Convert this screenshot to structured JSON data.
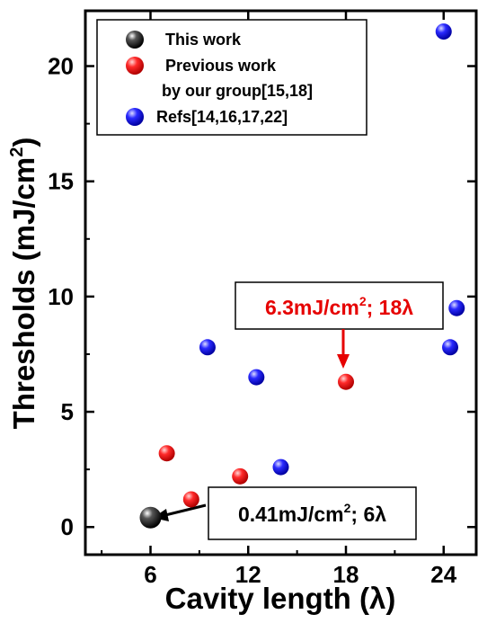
{
  "chart_data": {
    "type": "scatter",
    "xlabel": "Cavity length (λ)",
    "ylabel_main": "Thresholds (mJ/cm",
    "ylabel_sup": "2",
    "ylabel_end": ")",
    "xlim": [
      2,
      26
    ],
    "ylim": [
      -1.2,
      22.4
    ],
    "xticks": [
      6,
      12,
      18,
      24
    ],
    "yticks": [
      0,
      5,
      10,
      15,
      20
    ],
    "grid": false,
    "legend_position": "top-left",
    "series": [
      {
        "name": "This work",
        "color": "#000000",
        "marker_size": "large",
        "points": [
          {
            "x": 6,
            "y": 0.41
          }
        ]
      },
      {
        "name": "Previous work",
        "name_line2": "by our group[15,18]",
        "color": "#e60000",
        "points": [
          {
            "x": 7,
            "y": 3.2
          },
          {
            "x": 8.5,
            "y": 1.2
          },
          {
            "x": 11.5,
            "y": 2.2
          },
          {
            "x": 18,
            "y": 6.3
          }
        ]
      },
      {
        "name": "Refs[14,16,17,22]",
        "color": "#0000e0",
        "points": [
          {
            "x": 9.5,
            "y": 7.8
          },
          {
            "x": 12.5,
            "y": 6.5
          },
          {
            "x": 14,
            "y": 2.6
          },
          {
            "x": 24,
            "y": 21.5
          },
          {
            "x": 24.4,
            "y": 7.8
          },
          {
            "x": 24.8,
            "y": 9.5
          }
        ]
      }
    ],
    "annotations": [
      {
        "id": "this-work",
        "text_a": "0.41mJ/cm",
        "sup": "2",
        "text_b": "; 6λ",
        "color": "#000000",
        "target": {
          "x": 6,
          "y": 0.41
        }
      },
      {
        "id": "previous-work",
        "text_a": "6.3mJ/cm",
        "sup": "2",
        "text_b": "; 18λ",
        "color": "#e60000",
        "target": {
          "x": 18,
          "y": 6.3
        }
      }
    ]
  }
}
